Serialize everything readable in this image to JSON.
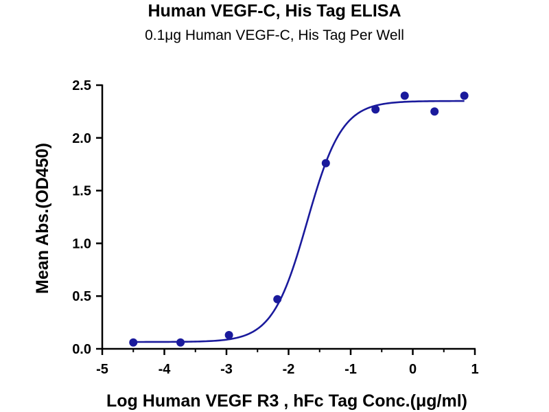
{
  "chart_data": {
    "type": "scatter",
    "title": "Human VEGF-C, His Tag ELISA",
    "subtitle": "0.1μg Human VEGF-C, His Tag Per Well",
    "xlabel": "Log Human VEGF R3 , hFc Tag Conc.(μg/ml)",
    "ylabel": "Mean Abs.(OD450)",
    "xlim": [
      -5,
      1
    ],
    "ylim": [
      0,
      2.5
    ],
    "xticks": [
      "-5",
      "-4",
      "-3",
      "-2",
      "-1",
      "0",
      "1"
    ],
    "yticks": [
      "0.0",
      "0.5",
      "1.0",
      "1.5",
      "2.0",
      "2.5"
    ],
    "grid": false,
    "legend": "none",
    "color": "#1a1a9c",
    "points": [
      {
        "x": -4.5,
        "y": 0.06
      },
      {
        "x": -3.74,
        "y": 0.06
      },
      {
        "x": -2.96,
        "y": 0.13
      },
      {
        "x": -2.18,
        "y": 0.47
      },
      {
        "x": -1.4,
        "y": 1.76
      },
      {
        "x": -0.6,
        "y": 2.27
      },
      {
        "x": -0.13,
        "y": 2.4
      },
      {
        "x": 0.35,
        "y": 2.25
      },
      {
        "x": 0.83,
        "y": 2.4
      }
    ],
    "fit": {
      "model": "4PL",
      "bottom": 0.065,
      "top": 2.35,
      "log_ec50": -1.7,
      "hill_slope": 1.55,
      "x_range": [
        -4.5,
        0.83
      ]
    }
  }
}
